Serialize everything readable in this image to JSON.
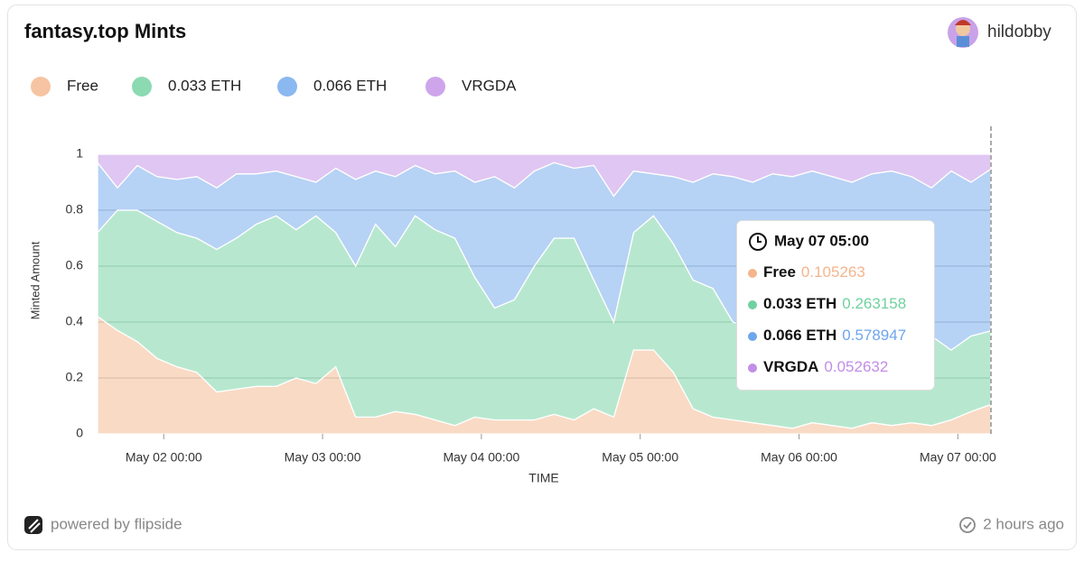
{
  "chart_data": {
    "type": "stacked-area",
    "title": "fantasy.top Mints",
    "user": "hildobby",
    "footer_brand": "powered by flipside",
    "footer_updated": "2 hours ago",
    "y_label": "Minted Amount",
    "x_label": "TIME",
    "x": [
      "May 01 14:00",
      "May 01 17:00",
      "May 01 20:00",
      "May 01 23:00",
      "May 02 02:00",
      "May 02 05:00",
      "May 02 08:00",
      "May 02 11:00",
      "May 02 14:00",
      "May 02 17:00",
      "May 02 20:00",
      "May 02 23:00",
      "May 03 02:00",
      "May 03 05:00",
      "May 03 08:00",
      "May 03 11:00",
      "May 03 14:00",
      "May 03 17:00",
      "May 03 20:00",
      "May 03 23:00",
      "May 04 02:00",
      "May 04 05:00",
      "May 04 08:00",
      "May 04 11:00",
      "May 04 14:00",
      "May 04 17:00",
      "May 04 20:00",
      "May 04 23:00",
      "May 05 02:00",
      "May 05 05:00",
      "May 05 08:00",
      "May 05 11:00",
      "May 05 14:00",
      "May 05 17:00",
      "May 05 20:00",
      "May 05 23:00",
      "May 06 02:00",
      "May 06 05:00",
      "May 06 08:00",
      "May 06 11:00",
      "May 06 14:00",
      "May 06 17:00",
      "May 06 20:00",
      "May 06 23:00",
      "May 07 02:00",
      "May 07 05:00"
    ],
    "series": [
      {
        "name": "Free",
        "color": "#f4b58c",
        "values": [
          0.42,
          0.37,
          0.33,
          0.27,
          0.24,
          0.22,
          0.15,
          0.16,
          0.17,
          0.17,
          0.2,
          0.18,
          0.24,
          0.06,
          0.06,
          0.08,
          0.07,
          0.05,
          0.03,
          0.06,
          0.05,
          0.05,
          0.05,
          0.07,
          0.05,
          0.09,
          0.06,
          0.3,
          0.3,
          0.22,
          0.09,
          0.06,
          0.05,
          0.04,
          0.03,
          0.02,
          0.04,
          0.03,
          0.02,
          0.04,
          0.03,
          0.04,
          0.03,
          0.05,
          0.08,
          0.105263
        ]
      },
      {
        "name": "0.033 ETH",
        "color": "#6fd19f",
        "values": [
          0.3,
          0.43,
          0.47,
          0.49,
          0.48,
          0.48,
          0.51,
          0.54,
          0.58,
          0.61,
          0.53,
          0.6,
          0.48,
          0.54,
          0.69,
          0.59,
          0.71,
          0.68,
          0.67,
          0.5,
          0.4,
          0.43,
          0.55,
          0.63,
          0.65,
          0.46,
          0.34,
          0.42,
          0.48,
          0.46,
          0.46,
          0.46,
          0.35,
          0.34,
          0.39,
          0.36,
          0.31,
          0.27,
          0.3,
          0.34,
          0.29,
          0.26,
          0.32,
          0.25,
          0.27,
          0.263158
        ]
      },
      {
        "name": "0.066 ETH",
        "color": "#6ea6ec",
        "values": [
          0.25,
          0.08,
          0.16,
          0.16,
          0.19,
          0.22,
          0.22,
          0.23,
          0.18,
          0.16,
          0.19,
          0.12,
          0.23,
          0.31,
          0.19,
          0.25,
          0.18,
          0.2,
          0.24,
          0.34,
          0.47,
          0.4,
          0.34,
          0.27,
          0.25,
          0.41,
          0.45,
          0.22,
          0.15,
          0.24,
          0.35,
          0.41,
          0.52,
          0.52,
          0.51,
          0.54,
          0.59,
          0.62,
          0.58,
          0.55,
          0.62,
          0.62,
          0.53,
          0.64,
          0.55,
          0.578947
        ]
      },
      {
        "name": "VRGDA",
        "color": "#c28ee6",
        "values": [
          0.03,
          0.12,
          0.04,
          0.08,
          0.09,
          0.08,
          0.12,
          0.07,
          0.07,
          0.06,
          0.08,
          0.1,
          0.05,
          0.09,
          0.06,
          0.08,
          0.04,
          0.07,
          0.06,
          0.1,
          0.08,
          0.12,
          0.06,
          0.03,
          0.05,
          0.04,
          0.15,
          0.06,
          0.07,
          0.08,
          0.1,
          0.07,
          0.08,
          0.1,
          0.07,
          0.08,
          0.06,
          0.08,
          0.1,
          0.07,
          0.06,
          0.08,
          0.12,
          0.06,
          0.1,
          0.052632
        ]
      }
    ],
    "xticks": [
      "May 02 00:00",
      "May 03 00:00",
      "May 04 00:00",
      "May 05 00:00",
      "May 06 00:00",
      "May 07 00:00"
    ],
    "ylim": [
      0,
      1
    ],
    "yticks": [
      0,
      0.2,
      0.4,
      0.6,
      0.8,
      1
    ],
    "grid": true,
    "tooltip_index": 45
  }
}
